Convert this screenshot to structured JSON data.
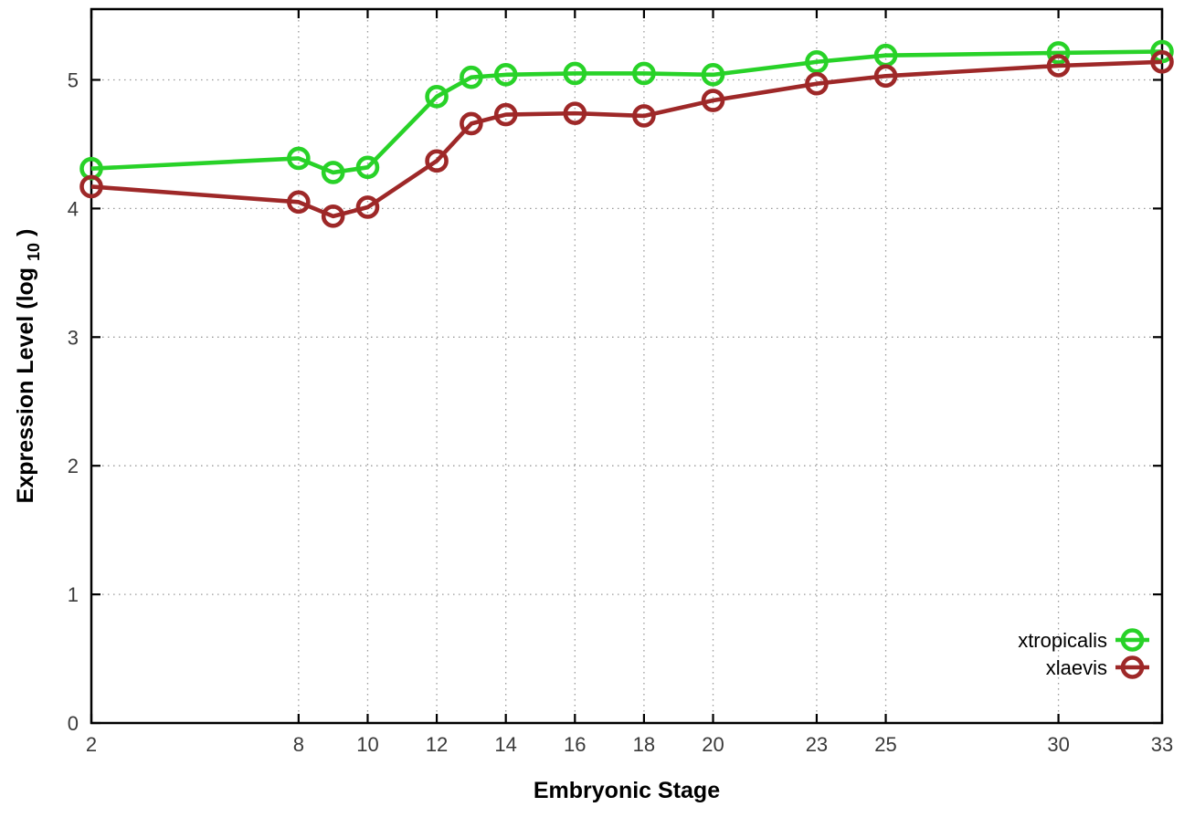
{
  "chart_data": {
    "type": "line",
    "title": "",
    "xlabel": "Embryonic Stage",
    "ylabel": {
      "base": "Expression Level (log",
      "sub": "10",
      "close": ")"
    },
    "x": [
      2,
      8,
      9,
      10,
      12,
      13,
      14,
      16,
      18,
      20,
      23,
      25,
      30,
      33
    ],
    "series": [
      {
        "name": "xtropicalis",
        "color": "#28d228",
        "values": [
          4.31,
          4.39,
          4.28,
          4.32,
          4.87,
          5.02,
          5.04,
          5.05,
          5.05,
          5.04,
          5.14,
          5.19,
          5.21,
          5.22
        ]
      },
      {
        "name": "xlaevis",
        "color": "#9e2828",
        "values": [
          4.17,
          4.05,
          3.94,
          4.01,
          4.37,
          4.66,
          4.73,
          4.74,
          4.72,
          4.84,
          4.97,
          5.03,
          5.11,
          5.14
        ]
      }
    ],
    "xticks": [
      2,
      8,
      10,
      12,
      14,
      16,
      18,
      20,
      23,
      25,
      30,
      33
    ],
    "yticks": [
      0,
      1,
      2,
      3,
      4,
      5
    ],
    "xlim": [
      2,
      33
    ],
    "ylim": [
      0,
      5.55
    ],
    "grid": true,
    "grid_style": "dotted",
    "marker": "open-circle",
    "legend_position": "bottom-right",
    "colors": {
      "border": "#000000",
      "grid": "#9a9a9a",
      "tick_label": "#3a3a3a",
      "axis_label": "#000000",
      "background": "#ffffff"
    }
  }
}
